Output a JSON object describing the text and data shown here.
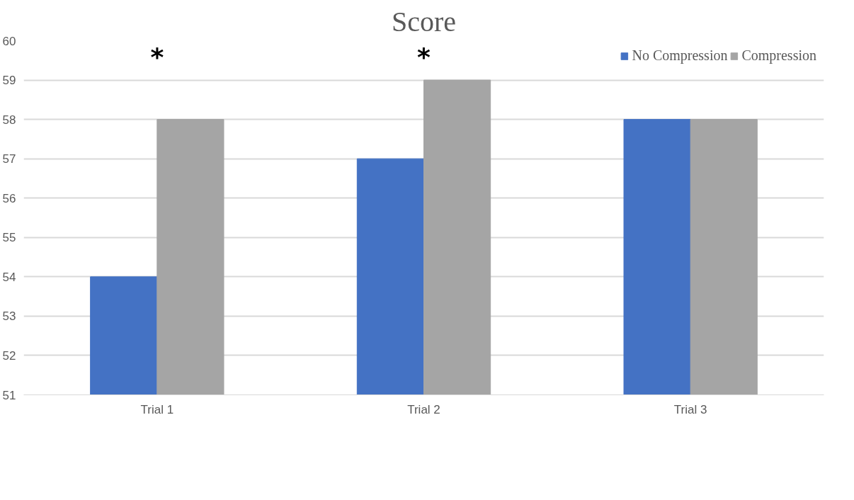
{
  "chart_data": {
    "type": "bar",
    "title": "Score",
    "categories": [
      "Trial 1",
      "Trial 2",
      "Trial 3"
    ],
    "series": [
      {
        "name": "No Compression",
        "color": "#4472c4",
        "values": [
          54,
          57,
          58
        ]
      },
      {
        "name": "Compression",
        "color": "#a5a5a5",
        "values": [
          58,
          59,
          58
        ]
      }
    ],
    "ylim": [
      51,
      60
    ],
    "yticks": [
      51,
      52,
      53,
      54,
      55,
      56,
      57,
      58,
      59,
      60
    ],
    "grid": "y",
    "legend": "top right",
    "annotations": [
      "*",
      "*"
    ]
  }
}
